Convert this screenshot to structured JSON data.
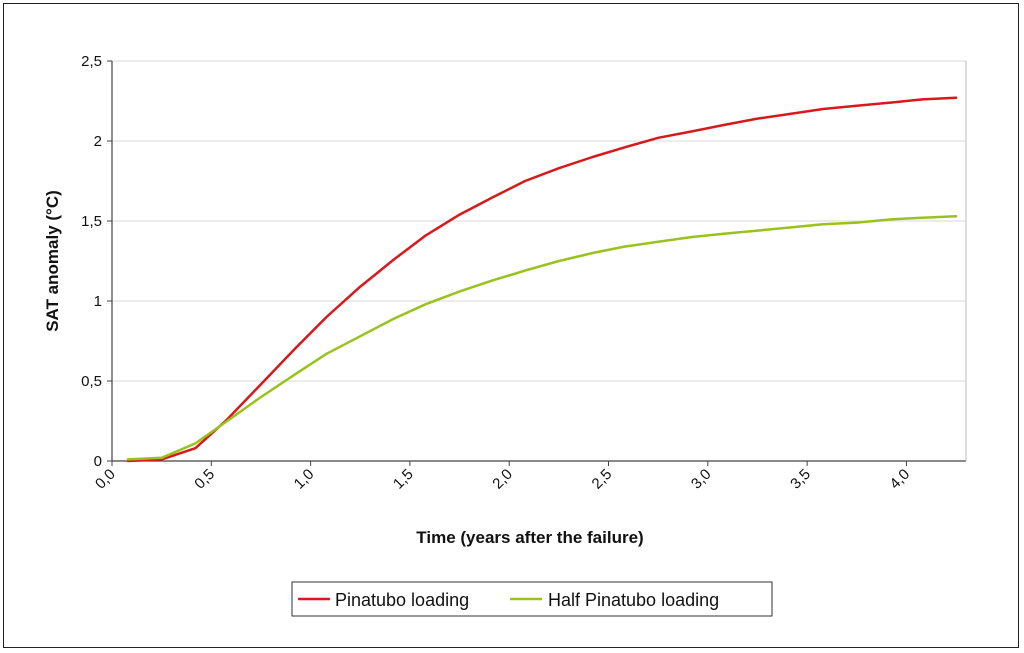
{
  "chart_data": {
    "type": "line",
    "title": "",
    "xlabel": "Time (years after the failure)",
    "ylabel": "SAT anomaly (°C)",
    "xlim": [
      0.0,
      4.3
    ],
    "ylim": [
      0,
      2.5
    ],
    "x_ticks": [
      0.0,
      0.5,
      1.0,
      1.5,
      2.0,
      2.5,
      3.0,
      3.5,
      4.0
    ],
    "x_tick_labels": [
      "0,0",
      "0,5",
      "1,0",
      "1,5",
      "2,0",
      "2,5",
      "3,0",
      "3,5",
      "4,0"
    ],
    "y_ticks": [
      0,
      0.5,
      1,
      1.5,
      2,
      2.5
    ],
    "y_tick_labels": [
      "0",
      "0,5",
      "1",
      "1,5",
      "2",
      "2,5"
    ],
    "grid": "horizontal",
    "legend_position": "bottom",
    "series": [
      {
        "name": "Pinatubo loading",
        "color": "#d7191c",
        "x": [
          0.08,
          0.25,
          0.42,
          0.58,
          0.75,
          0.92,
          1.08,
          1.25,
          1.42,
          1.58,
          1.75,
          1.92,
          2.08,
          2.25,
          2.42,
          2.58,
          2.75,
          2.92,
          3.08,
          3.25,
          3.42,
          3.58,
          3.75,
          3.92,
          4.08,
          4.25
        ],
        "values": [
          0.0,
          0.01,
          0.08,
          0.26,
          0.48,
          0.7,
          0.9,
          1.09,
          1.26,
          1.41,
          1.54,
          1.65,
          1.75,
          1.83,
          1.9,
          1.96,
          2.02,
          2.06,
          2.1,
          2.14,
          2.17,
          2.2,
          2.22,
          2.24,
          2.26,
          2.27
        ]
      },
      {
        "name": "Half Pinatubo loading",
        "color": "#99c31c",
        "x": [
          0.08,
          0.25,
          0.42,
          0.58,
          0.75,
          0.92,
          1.08,
          1.25,
          1.42,
          1.58,
          1.75,
          1.92,
          2.08,
          2.25,
          2.42,
          2.58,
          2.75,
          2.92,
          3.08,
          3.25,
          3.42,
          3.58,
          3.75,
          3.92,
          4.08,
          4.25
        ],
        "values": [
          0.01,
          0.02,
          0.11,
          0.25,
          0.4,
          0.54,
          0.67,
          0.78,
          0.89,
          0.98,
          1.06,
          1.13,
          1.19,
          1.25,
          1.3,
          1.34,
          1.37,
          1.4,
          1.42,
          1.44,
          1.46,
          1.48,
          1.49,
          1.51,
          1.52,
          1.53
        ]
      }
    ]
  }
}
